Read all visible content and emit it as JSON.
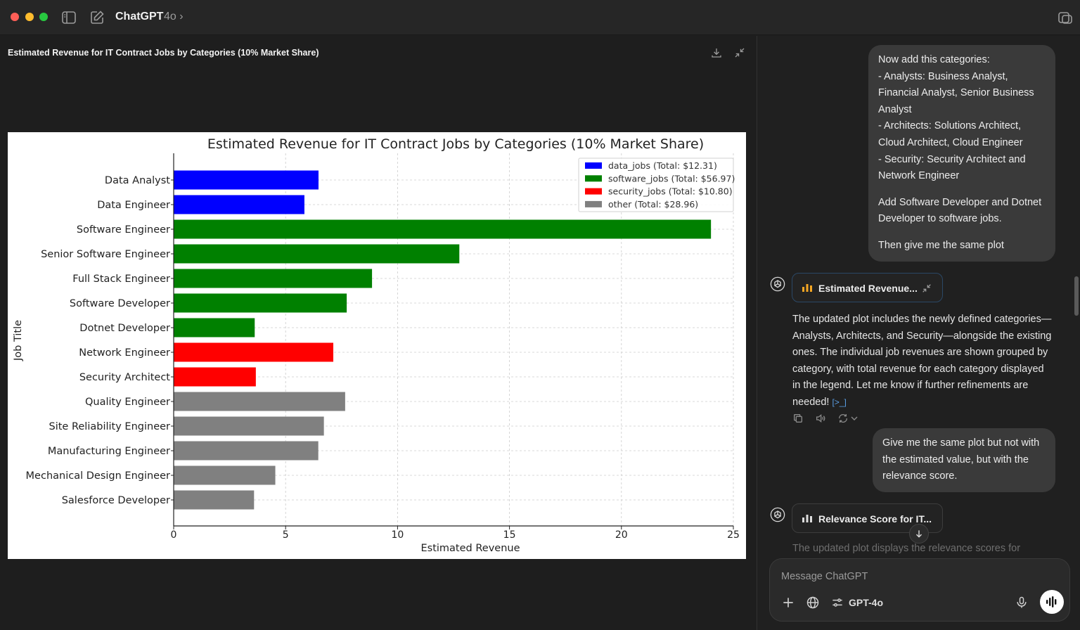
{
  "titlebar": {
    "title": "ChatGPT",
    "model": "4o ›"
  },
  "canvas": {
    "title": "Estimated Revenue for IT Contract Jobs by Categories (10% Market Share)"
  },
  "chart_data": {
    "type": "bar",
    "orientation": "horizontal",
    "title": "Estimated Revenue for IT Contract Jobs by Categories (10% Market Share)",
    "xlabel": "Estimated Revenue",
    "ylabel": "Job Title",
    "xlim": [
      0,
      25
    ],
    "xticks": [
      0,
      5,
      10,
      15,
      20,
      25
    ],
    "grid": true,
    "legend_position": "top-right",
    "categories": [
      "Data Analyst",
      "Data Engineer",
      "Software Engineer",
      "Senior Software Engineer",
      "Full Stack Engineer",
      "Software Developer",
      "Dotnet Developer",
      "Network Engineer",
      "Security Architect",
      "Quality Engineer",
      "Site Reliability Engineer",
      "Manufacturing Engineer",
      "Mechanical Design Engineer",
      "Salesforce Developer"
    ],
    "values": [
      6.47,
      5.84,
      24.0,
      12.76,
      8.86,
      7.73,
      3.62,
      7.13,
      3.67,
      7.66,
      6.71,
      6.46,
      4.54,
      3.59
    ],
    "groups": [
      "data_jobs",
      "data_jobs",
      "software_jobs",
      "software_jobs",
      "software_jobs",
      "software_jobs",
      "software_jobs",
      "security_jobs",
      "security_jobs",
      "other",
      "other",
      "other",
      "other",
      "other"
    ],
    "series": [
      {
        "name": "data_jobs",
        "label": "data_jobs (Total: $12.31)",
        "color": "#0000ff"
      },
      {
        "name": "software_jobs",
        "label": "software_jobs (Total: $56.97)",
        "color": "#008000"
      },
      {
        "name": "security_jobs",
        "label": "security_jobs (Total: $10.80)",
        "color": "#ff0000"
      },
      {
        "name": "other",
        "label": "other (Total: $28.96)",
        "color": "#808080"
      }
    ]
  },
  "chat": {
    "user_message_1": {
      "lines": [
        "Now add this categories:",
        "- Analysts: Business Analyst, Financial Analyst, Senior Business Analyst",
        "- Architects: Solutions Architect, Cloud Architect, Cloud Engineer",
        "- Security: Security Architect and Network Engineer"
      ],
      "para_2": "Add Software Developer and Dotnet Developer to software jobs.",
      "para_3": "Then give me the same plot"
    },
    "artifact_1": {
      "label": "Estimated Revenue..."
    },
    "assistant_1": "The updated plot includes the newly defined categories—Analysts, Architects, and Security—alongside the existing ones. The individual job revenues are shown grouped by category, with total revenue for each category displayed in the legend. Let me know if further refinements are needed!",
    "user_message_2": "Give me the same plot but not with the estimated value, but with the relevance score.",
    "artifact_2": {
      "label": "Relevance Score for IT..."
    },
    "assistant_2_partial": "The updated plot displays the relevance scores for"
  },
  "composer": {
    "placeholder": "Message ChatGPT",
    "model": "GPT-4o"
  },
  "colors": {
    "accent_link": "#5a9fe6",
    "chip_chart_icon": "#f5a623"
  }
}
